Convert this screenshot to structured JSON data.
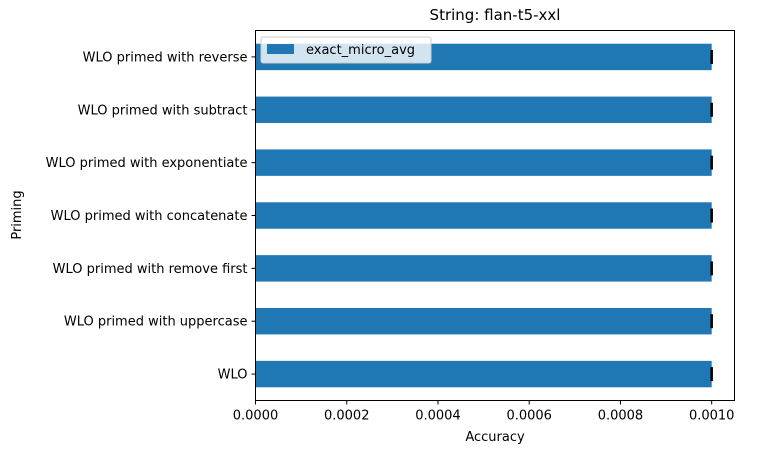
{
  "chart_data": {
    "type": "bar",
    "orientation": "horizontal",
    "title": "String: flan-t5-xxl",
    "xlabel": "Accuracy",
    "ylabel": "Priming",
    "categories": [
      "WLO",
      "WLO primed with uppercase",
      "WLO primed with remove first",
      "WLO primed with concatenate",
      "WLO primed with exponentiate",
      "WLO primed with subtract",
      "WLO primed with reverse"
    ],
    "series": [
      {
        "name": "exact_micro_avg",
        "values": [
          0.001,
          0.001,
          0.001,
          0.001,
          0.001,
          0.001,
          0.001
        ],
        "error": [
          0,
          0,
          0,
          0,
          0,
          0,
          0
        ]
      }
    ],
    "xlim": [
      0,
      0.00105
    ],
    "xticks": [
      "0.0000",
      "0.0002",
      "0.0004",
      "0.0006",
      "0.0008",
      "0.0010"
    ],
    "xtick_values": [
      0,
      0.0002,
      0.0004,
      0.0006,
      0.0008,
      0.001
    ],
    "grid": false,
    "legend_position": "top-left",
    "colors": {
      "bar": "#1f77b4",
      "axis": "#000000"
    }
  }
}
